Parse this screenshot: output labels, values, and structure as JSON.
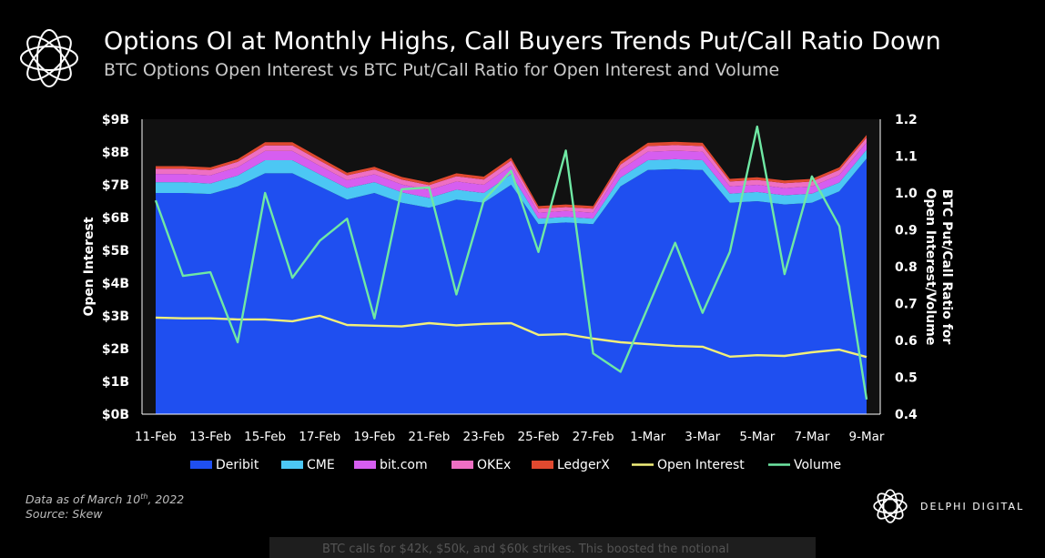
{
  "header": {
    "title": "Options OI at Monthly Highs, Call Buyers Trends Put/Call Ratio Down",
    "subtitle": "BTC Options Open Interest vs BTC Put/Call Ratio for Open Interest and Volume"
  },
  "footer": {
    "data_as_of_prefix": "Data as of March 10",
    "data_as_of_sup": "th",
    "data_as_of_suffix": ", 2022",
    "source": "Source:  Skew",
    "brand": "DELPHI DIGITAL",
    "peek_text": "BTC calls for $42k, $50k, and $60k strikes. This boosted the notional"
  },
  "chart_data": {
    "type": "area",
    "title": "Options OI at Monthly Highs, Call Buyers Trends Put/Call Ratio Down",
    "subtitle": "BTC Options Open Interest vs BTC Put/Call Ratio for Open Interest and Volume",
    "x": [
      "11-Feb",
      "12-Feb",
      "13-Feb",
      "14-Feb",
      "15-Feb",
      "16-Feb",
      "17-Feb",
      "18-Feb",
      "19-Feb",
      "20-Feb",
      "21-Feb",
      "22-Feb",
      "23-Feb",
      "24-Feb",
      "25-Feb",
      "26-Feb",
      "27-Feb",
      "28-Feb",
      "1-Mar",
      "2-Mar",
      "3-Mar",
      "4-Mar",
      "5-Mar",
      "6-Mar",
      "7-Mar",
      "8-Mar",
      "9-Mar"
    ],
    "x_tick_labels": [
      "11-Feb",
      "13-Feb",
      "15-Feb",
      "17-Feb",
      "19-Feb",
      "21-Feb",
      "23-Feb",
      "25-Feb",
      "27-Feb",
      "1-Mar",
      "3-Mar",
      "5-Mar",
      "7-Mar",
      "9-Mar"
    ],
    "ylabel_left": "Open Interest",
    "ylabel_right": "BTC Put/Call Ratio for Open Interest/Volume",
    "ylim_left": [
      0,
      9
    ],
    "y_ticks_left": [
      "$0B",
      "$1B",
      "$2B",
      "$3B",
      "$4B",
      "$5B",
      "$6B",
      "$7B",
      "$8B",
      "$9B"
    ],
    "ylim_right": [
      0.4,
      1.2
    ],
    "y_ticks_right": [
      "0.4",
      "0.5",
      "0.6",
      "0.7",
      "0.8",
      "0.9",
      "1.0",
      "1.1",
      "1.2"
    ],
    "grid": false,
    "legend_position": "bottom",
    "stacked_series_units": "USD billions",
    "stacked_series": [
      {
        "name": "Deribit",
        "color": "#1f4ff0",
        "values": [
          6.75,
          6.75,
          6.72,
          6.95,
          7.35,
          7.35,
          6.95,
          6.55,
          6.75,
          6.45,
          6.3,
          6.55,
          6.45,
          7.0,
          5.8,
          5.85,
          5.8,
          6.95,
          7.45,
          7.48,
          7.45,
          6.45,
          6.5,
          6.4,
          6.45,
          6.8,
          7.8
        ]
      },
      {
        "name": "CME",
        "color": "#4cc7f4",
        "values": [
          0.33,
          0.33,
          0.32,
          0.33,
          0.4,
          0.4,
          0.37,
          0.35,
          0.33,
          0.32,
          0.3,
          0.3,
          0.3,
          0.32,
          0.17,
          0.17,
          0.17,
          0.27,
          0.3,
          0.3,
          0.3,
          0.28,
          0.28,
          0.28,
          0.28,
          0.27,
          0.27
        ]
      },
      {
        "name": "bit.com",
        "color": "#d65ef0",
        "values": [
          0.25,
          0.25,
          0.25,
          0.26,
          0.28,
          0.28,
          0.26,
          0.24,
          0.24,
          0.24,
          0.24,
          0.25,
          0.25,
          0.26,
          0.18,
          0.18,
          0.18,
          0.24,
          0.26,
          0.26,
          0.26,
          0.22,
          0.22,
          0.22,
          0.22,
          0.23,
          0.22
        ]
      },
      {
        "name": "OKEx",
        "color": "#ee6fc3",
        "values": [
          0.16,
          0.16,
          0.16,
          0.16,
          0.17,
          0.17,
          0.16,
          0.15,
          0.15,
          0.15,
          0.15,
          0.16,
          0.16,
          0.16,
          0.12,
          0.12,
          0.12,
          0.16,
          0.17,
          0.17,
          0.17,
          0.15,
          0.15,
          0.15,
          0.15,
          0.15,
          0.15
        ]
      },
      {
        "name": "LedgerX",
        "color": "#e0492f",
        "values": [
          0.08,
          0.08,
          0.08,
          0.08,
          0.1,
          0.1,
          0.09,
          0.08,
          0.08,
          0.08,
          0.08,
          0.09,
          0.09,
          0.09,
          0.08,
          0.08,
          0.08,
          0.09,
          0.1,
          0.1,
          0.1,
          0.08,
          0.08,
          0.08,
          0.08,
          0.08,
          0.08
        ]
      }
    ],
    "line_series": [
      {
        "name": "Open Interest",
        "color": "#f2ef7a",
        "axis": "right",
        "values": [
          0.662,
          0.66,
          0.66,
          0.657,
          0.657,
          0.652,
          0.667,
          0.642,
          0.64,
          0.638,
          0.647,
          0.641,
          0.645,
          0.647,
          0.615,
          0.617,
          0.605,
          0.595,
          0.59,
          0.585,
          0.583,
          0.556,
          0.56,
          0.558,
          0.568,
          0.575,
          0.555
        ]
      },
      {
        "name": "Volume",
        "color": "#6fe8a4",
        "axis": "right",
        "values": [
          0.98,
          0.775,
          0.785,
          0.595,
          1.0,
          0.77,
          0.87,
          0.93,
          0.66,
          1.01,
          1.015,
          0.725,
          0.98,
          1.06,
          0.84,
          1.115,
          0.565,
          0.515,
          0.69,
          0.865,
          0.675,
          0.84,
          1.18,
          0.78,
          1.045,
          0.91,
          0.44
        ]
      }
    ]
  }
}
